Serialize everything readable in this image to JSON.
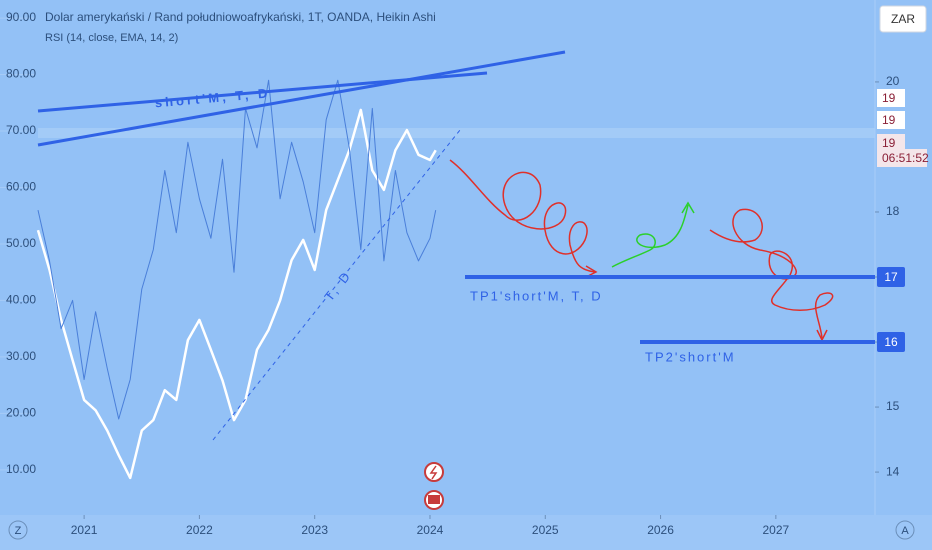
{
  "chart_data": {
    "type": "line",
    "title": "Dolar amerykański / Rand południowoafrykański, 1T, OANDA, Heikin Ashi",
    "subtitle": "RSI (14, close, EMA, 14, 2)",
    "currency": "ZAR",
    "corner_buttons": [
      "Z",
      "A"
    ],
    "price_labels": [
      "19",
      "19",
      "19",
      "06:51:52"
    ],
    "annotations": [
      "short'M, T, D",
      "T, D",
      "TP1'short'M, T, D",
      "TP2'short'M"
    ],
    "targets": [
      17,
      16
    ],
    "x": [
      2020.6,
      2020.7,
      2020.8,
      2020.9,
      2021.0,
      2021.1,
      2021.2,
      2021.3,
      2021.4,
      2021.5,
      2021.6,
      2021.7,
      2021.8,
      2021.9,
      2022.0,
      2022.1,
      2022.2,
      2022.3,
      2022.4,
      2022.5,
      2022.6,
      2022.7,
      2022.8,
      2022.9,
      2023.0,
      2023.1,
      2023.2,
      2023.3,
      2023.4,
      2023.5,
      2023.6,
      2023.7,
      2023.8,
      2023.9,
      2024.0,
      2024.05
    ],
    "xlim": [
      2020.6,
      2027.86
    ],
    "xticks": [
      2021,
      2022,
      2023,
      2024,
      2025,
      2026,
      2027
    ],
    "ylim": [
      2,
      93.2
    ],
    "yticks": [
      {
        "value": 10,
        "label": "10.00"
      },
      {
        "value": 20,
        "label": "20.00"
      },
      {
        "value": 30,
        "label": "30.00"
      },
      {
        "value": 40,
        "label": "40.00"
      },
      {
        "value": 50,
        "label": "50.00"
      },
      {
        "value": 60,
        "label": "60.00"
      },
      {
        "value": 70,
        "label": "70.00"
      },
      {
        "value": 80,
        "label": "80.00"
      },
      {
        "value": 90,
        "label": "90.00"
      }
    ],
    "y2lim": [
      13.34,
      21.26
    ],
    "y2ticks": [
      14,
      15,
      16,
      17,
      18,
      20
    ],
    "series": [
      {
        "color": "#ffffff",
        "axis": "y2",
        "values": [
          17.72,
          17.11,
          16.34,
          15.72,
          15.11,
          14.95,
          14.64,
          14.26,
          13.91,
          14.64,
          14.8,
          15.26,
          15.11,
          16.03,
          16.34,
          15.88,
          15.41,
          14.8,
          15.11,
          15.88,
          16.19,
          16.64,
          17.26,
          17.57,
          17.11,
          18.03,
          18.49,
          18.95,
          19.57,
          18.64,
          18.34,
          18.95,
          19.26,
          18.88,
          18.8,
          18.95
        ]
      },
      {
        "color": "#4a7fd9",
        "values": [
          56,
          47,
          35,
          40,
          26,
          38,
          28,
          19,
          26,
          42,
          49,
          63,
          52,
          68,
          58,
          51,
          65,
          45,
          74,
          67,
          79,
          58,
          68,
          61,
          52,
          72,
          79,
          67,
          49,
          74,
          47,
          63,
          52,
          47,
          51,
          56
        ]
      }
    ]
  }
}
